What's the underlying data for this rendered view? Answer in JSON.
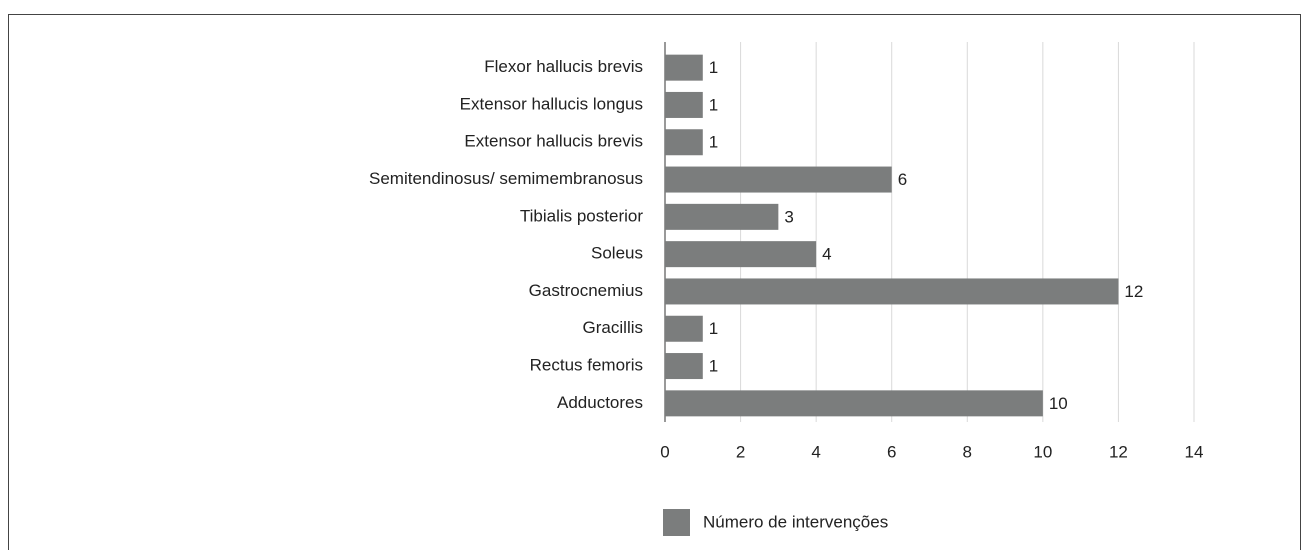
{
  "chart_data": {
    "type": "bar",
    "orientation": "horizontal",
    "categories": [
      "Flexor hallucis brevis",
      "Extensor hallucis longus",
      "Extensor hallucis brevis",
      "Semitendinosus/ semimembranosus",
      "Tibialis posterior",
      "Soleus",
      "Gastrocnemius",
      "Gracillis",
      "Rectus femoris",
      "Adductores"
    ],
    "series": [
      {
        "name": "Número de intervenções",
        "color": "#7b7d7d",
        "values": [
          1,
          1,
          1,
          6,
          3,
          4,
          12,
          1,
          1,
          10
        ]
      }
    ],
    "xlim": [
      0,
      14
    ],
    "xticks": [
      0,
      2,
      4,
      6,
      8,
      10,
      12,
      14
    ],
    "grid": true,
    "legend": "bottom"
  }
}
